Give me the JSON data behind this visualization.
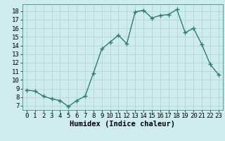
{
  "x": [
    0,
    1,
    2,
    3,
    4,
    5,
    6,
    7,
    8,
    9,
    10,
    11,
    12,
    13,
    14,
    15,
    16,
    17,
    18,
    19,
    20,
    21,
    22,
    23
  ],
  "y": [
    8.8,
    8.7,
    8.1,
    7.8,
    7.6,
    6.9,
    7.6,
    8.1,
    10.8,
    13.6,
    14.4,
    15.2,
    14.2,
    17.9,
    18.1,
    17.2,
    17.5,
    17.6,
    18.2,
    15.5,
    16.0,
    14.1,
    11.8,
    10.6
  ],
  "line_color": "#2e7d6e",
  "marker": "+",
  "marker_size": 4,
  "linewidth": 1.0,
  "markeredgewidth": 1.0,
  "xlabel": "Humidex (Indice chaleur)",
  "xlabel_fontsize": 7.5,
  "tick_fontsize": 6.5,
  "xlim": [
    -0.5,
    23.5
  ],
  "ylim": [
    6.5,
    18.8
  ],
  "yticks": [
    7,
    8,
    9,
    10,
    11,
    12,
    13,
    14,
    15,
    16,
    17,
    18
  ],
  "xticks": [
    0,
    1,
    2,
    3,
    4,
    5,
    6,
    7,
    8,
    9,
    10,
    11,
    12,
    13,
    14,
    15,
    16,
    17,
    18,
    19,
    20,
    21,
    22,
    23
  ],
  "bg_color": "#ceeced",
  "grid_color": "#b8d8d8",
  "fig_bg": "#ceeced"
}
